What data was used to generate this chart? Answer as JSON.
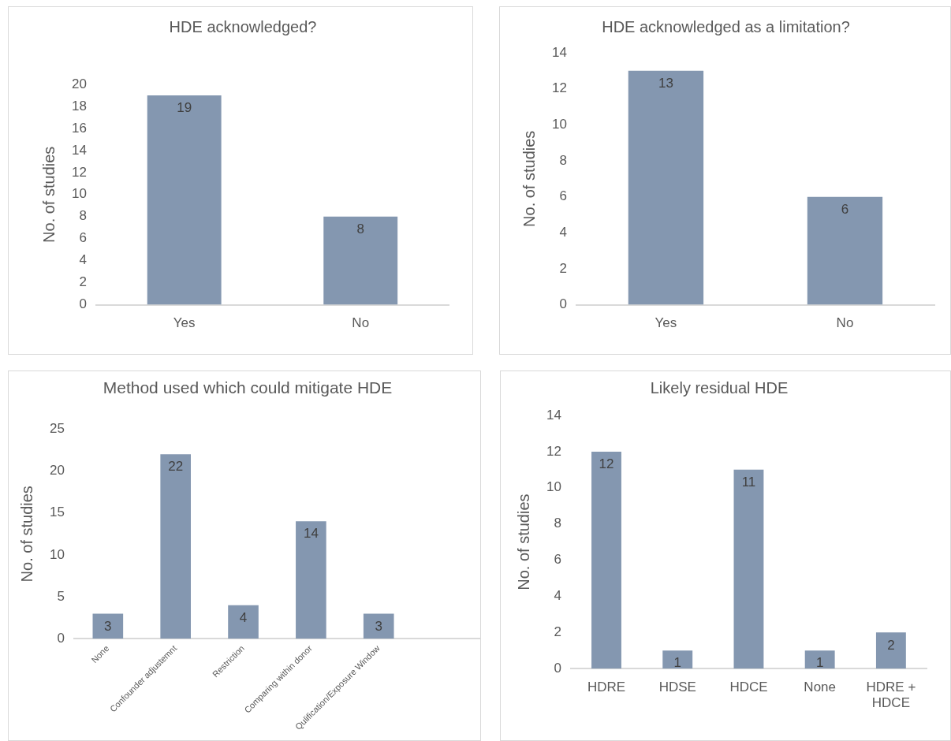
{
  "chart_data": [
    {
      "type": "bar",
      "title": "HDE acknowledged?",
      "ylabel": "No. of studies",
      "categories": [
        "Yes",
        "No"
      ],
      "values": [
        19,
        8
      ],
      "color": "#8497b0",
      "ylim": [
        0,
        20
      ],
      "yticks": [
        0,
        2,
        4,
        6,
        8,
        10,
        12,
        14,
        16,
        18,
        20
      ],
      "grid": false,
      "legend": false,
      "data_labels": true
    },
    {
      "type": "bar",
      "title": "HDE acknowledged as a limitation?",
      "ylabel": "No. of studies",
      "categories": [
        "Yes",
        "No"
      ],
      "values": [
        13,
        6
      ],
      "color": "#8497b0",
      "ylim": [
        0,
        14
      ],
      "yticks": [
        0,
        2,
        4,
        6,
        8,
        10,
        12,
        14
      ],
      "grid": false,
      "legend": false,
      "data_labels": true
    },
    {
      "type": "bar",
      "title": "Method used which could mitigate HDE",
      "ylabel": "No. of studies",
      "categories": [
        "None",
        "Confounder adjustemnt",
        "Restriction",
        "Comparing within donor",
        "Qulification/Exposure Window",
        null
      ],
      "values": [
        3,
        22,
        4,
        14,
        3,
        null
      ],
      "color": "#8497b0",
      "ylim": [
        0,
        25
      ],
      "yticks": [
        0,
        5,
        10,
        15,
        20,
        25
      ],
      "grid": false,
      "legend": false,
      "data_labels": true
    },
    {
      "type": "bar",
      "title": "Likely residual HDE",
      "ylabel": "No. of studies",
      "categories": [
        "HDRE",
        "HDSE",
        "HDCE",
        "None",
        "HDRE + HDCE"
      ],
      "values": [
        12,
        1,
        11,
        1,
        2
      ],
      "color": "#8497b0",
      "ylim": [
        0,
        14
      ],
      "yticks": [
        0,
        2,
        4,
        6,
        8,
        10,
        12,
        14
      ],
      "grid": false,
      "legend": false,
      "data_labels": true
    }
  ]
}
